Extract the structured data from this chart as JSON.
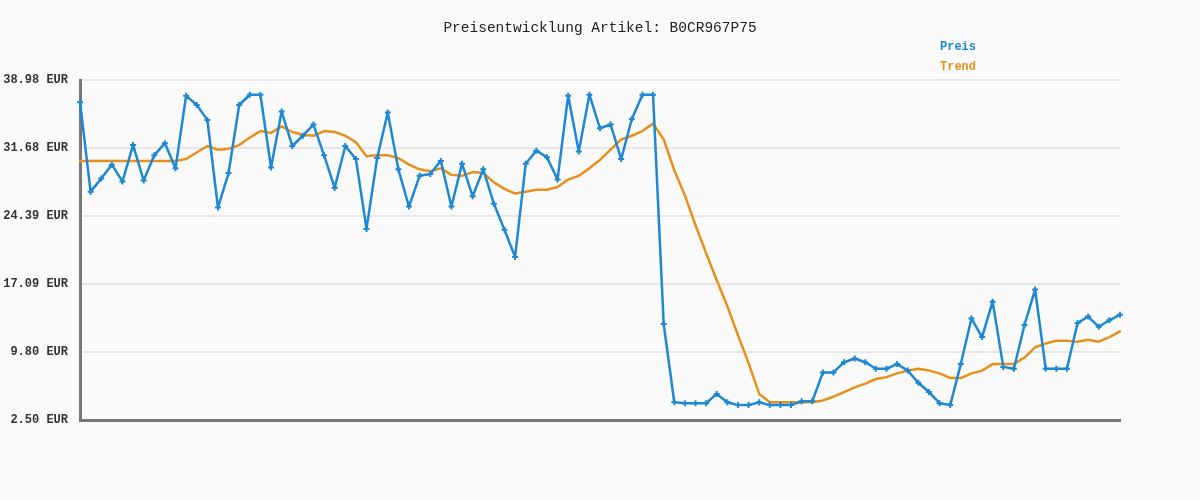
{
  "chart_data": {
    "type": "line",
    "title": "Preisentwicklung Artikel: B0CR967P75",
    "categories": [
      null,
      null,
      null,
      null,
      null,
      null,
      null,
      null,
      null,
      null,
      null,
      null,
      null,
      null,
      null,
      null,
      null,
      null,
      null,
      null,
      null,
      null,
      null,
      null,
      null,
      null,
      null,
      null,
      null,
      null,
      null,
      null,
      null,
      null,
      null,
      null,
      null,
      null,
      null,
      null,
      null,
      null,
      null,
      null,
      null,
      null,
      null,
      null,
      null,
      null,
      null,
      null,
      null,
      null,
      null,
      null,
      null,
      null,
      null,
      null,
      null,
      null,
      null,
      null,
      null,
      null,
      null,
      null,
      null,
      null,
      null,
      null,
      null,
      null,
      null,
      null,
      null,
      null,
      null,
      null,
      null,
      null,
      null,
      null,
      null,
      null,
      null,
      null,
      null,
      null,
      null,
      null,
      null,
      null,
      null,
      null,
      null,
      null,
      null
    ],
    "series": [
      {
        "name": "Preis",
        "color": "#1e88d2",
        "marker": "cross",
        "values": [
          36.6,
          27.0,
          28.4,
          29.9,
          28.1,
          32.0,
          28.2,
          30.9,
          32.2,
          29.5,
          37.3,
          36.3,
          34.7,
          25.3,
          29.0,
          36.3,
          37.4,
          37.4,
          29.6,
          35.6,
          31.9,
          33.0,
          34.2,
          30.9,
          27.4,
          31.9,
          30.5,
          23.0,
          30.6,
          35.5,
          29.4,
          25.4,
          28.7,
          28.9,
          30.3,
          25.4,
          30.0,
          26.5,
          29.4,
          25.7,
          22.9,
          20.0,
          30.0,
          31.4,
          30.7,
          28.3,
          37.3,
          31.3,
          37.4,
          33.8,
          34.2,
          30.5,
          34.8,
          37.4,
          37.4,
          12.8,
          4.4,
          4.3,
          4.3,
          4.3,
          5.3,
          4.4,
          4.1,
          4.1,
          4.4,
          4.1,
          4.1,
          4.1,
          4.5,
          4.5,
          7.6,
          7.6,
          8.7,
          9.1,
          8.7,
          8.0,
          8.0,
          8.5,
          7.8,
          6.5,
          5.5,
          4.3,
          4.1,
          8.5,
          13.4,
          11.4,
          15.2,
          8.2,
          8.0,
          12.7,
          16.5,
          8.0,
          8.0,
          8.0,
          12.9,
          13.6,
          12.5,
          13.2,
          13.8
        ]
      },
      {
        "name": "Trend",
        "color": "#e8901e",
        "marker": "none",
        "values": [
          30.3,
          30.3,
          30.3,
          30.3,
          30.3,
          30.3,
          30.3,
          30.3,
          30.3,
          30.3,
          30.5,
          31.2,
          31.9,
          31.5,
          31.6,
          32.0,
          32.8,
          33.5,
          33.3,
          34.0,
          33.4,
          33.1,
          33.0,
          33.5,
          33.4,
          33.0,
          32.3,
          30.8,
          30.9,
          30.9,
          30.6,
          29.9,
          29.4,
          29.2,
          29.5,
          28.8,
          28.7,
          29.1,
          29.0,
          28.0,
          27.3,
          26.8,
          27.0,
          27.2,
          27.2,
          27.5,
          28.3,
          28.7,
          29.5,
          30.4,
          31.5,
          32.6,
          33.0,
          33.5,
          34.3,
          32.6,
          29.3,
          26.6,
          23.4,
          20.4,
          17.5,
          14.7,
          11.6,
          8.6,
          5.3,
          4.4,
          4.4,
          4.4,
          4.4,
          4.4,
          4.6,
          5.0,
          5.5,
          6.0,
          6.4,
          6.9,
          7.1,
          7.5,
          7.8,
          8.0,
          7.8,
          7.5,
          7.0,
          7.0,
          7.5,
          7.8,
          8.5,
          8.5,
          8.5,
          9.2,
          10.3,
          10.7,
          11.0,
          11.0,
          10.9,
          11.1,
          10.9,
          11.4,
          12.0
        ]
      }
    ],
    "ylim": [
      2.5,
      38.98
    ],
    "yticks": [
      {
        "value": 2.5,
        "label": "2.50 EUR"
      },
      {
        "value": 9.8,
        "label": "9.80 EUR"
      },
      {
        "value": 17.09,
        "label": "17.09 EUR"
      },
      {
        "value": 24.39,
        "label": "24.39 EUR"
      },
      {
        "value": 31.68,
        "label": "31.68 EUR"
      },
      {
        "value": 38.98,
        "label": "38.98 EUR"
      }
    ],
    "grid": "y",
    "legend": "top right",
    "tick_labels": "y"
  }
}
